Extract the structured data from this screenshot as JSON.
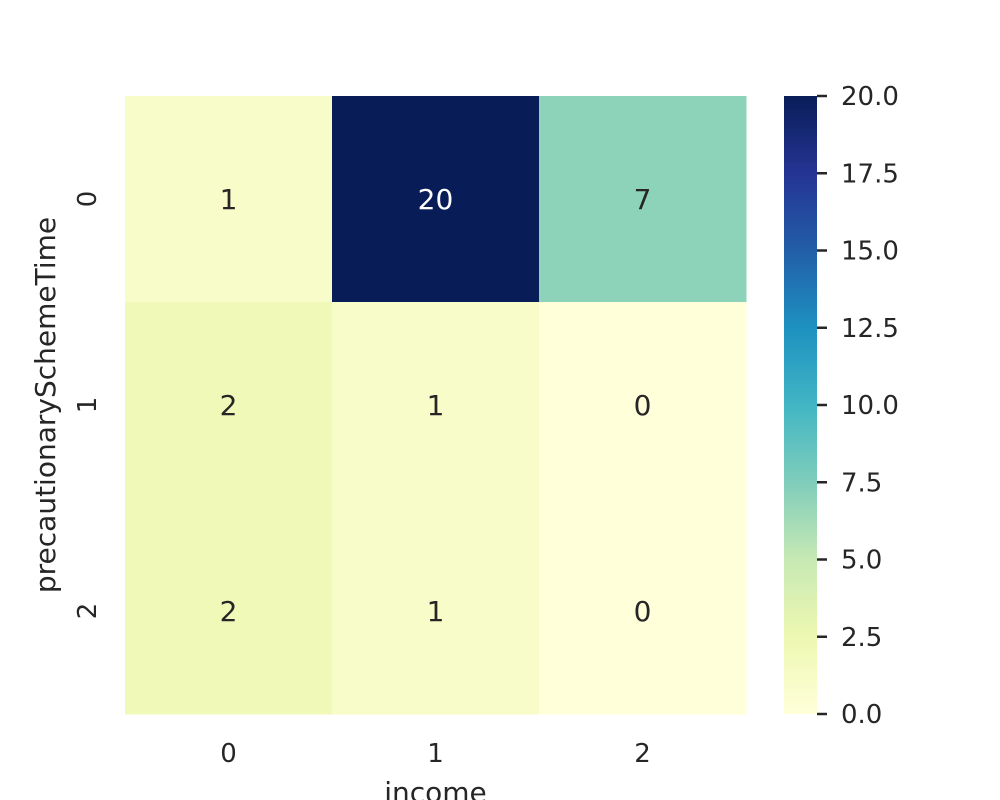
{
  "chart_data": {
    "type": "heatmap",
    "title": "",
    "xlabel": "income",
    "ylabel": "precautionarySchemeTime",
    "x_categories": [
      "0",
      "1",
      "2"
    ],
    "y_categories": [
      "0",
      "1",
      "2"
    ],
    "values": [
      [
        1,
        20,
        7
      ],
      [
        2,
        1,
        0
      ],
      [
        2,
        1,
        0
      ]
    ],
    "colorbar": {
      "min": 0,
      "max": 20,
      "ticks": [
        "0.0",
        "2.5",
        "5.0",
        "7.5",
        "10.0",
        "12.5",
        "15.0",
        "17.5",
        "20.0"
      ],
      "colormap": "YlGnBu",
      "colors": [
        "#ffffd9",
        "#edf8b1",
        "#c7e9b4",
        "#7fcdbb",
        "#41b6c4",
        "#1d91c0",
        "#225ea8",
        "#253494",
        "#081d58"
      ]
    },
    "grid": false
  }
}
